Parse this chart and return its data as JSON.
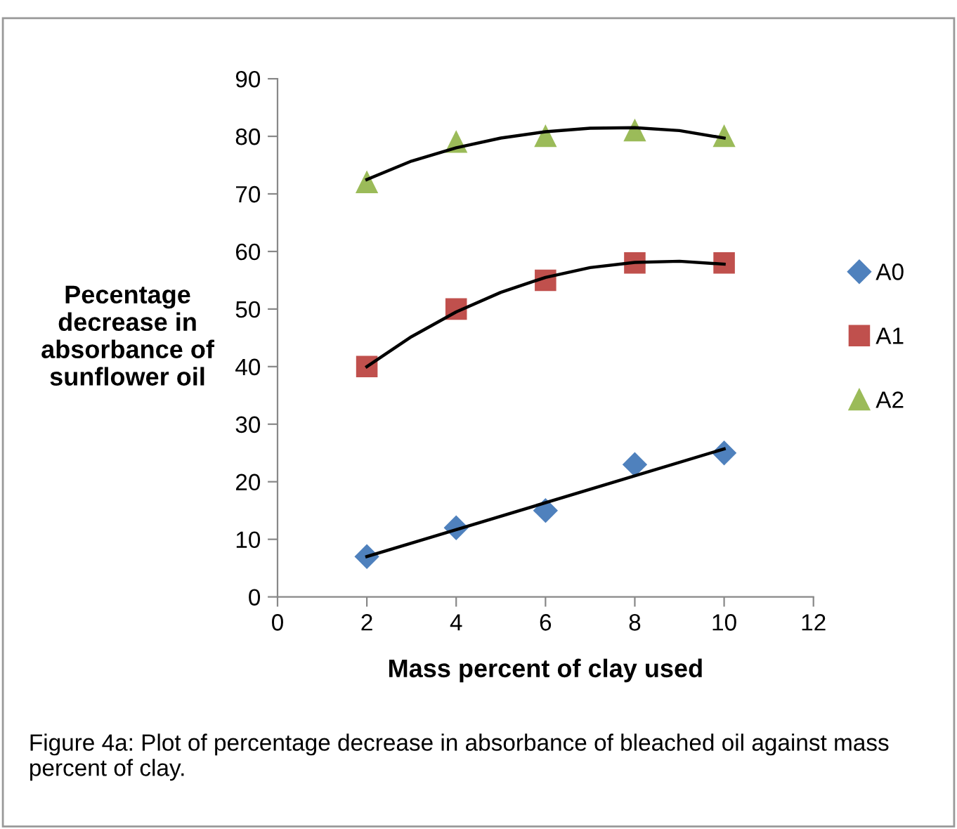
{
  "chart_data": {
    "type": "scatter",
    "xlabel": "Mass percent of clay used",
    "ylabel": "Pecentage\ndecrease in\nabsorbance of\nsunflower oil",
    "x": [
      2,
      4,
      6,
      8,
      10
    ],
    "series": [
      {
        "name": "A0",
        "color": "#4f81bd",
        "marker": "diamond",
        "values": [
          7,
          12,
          15,
          23,
          25
        ]
      },
      {
        "name": "A1",
        "color": "#c0504d",
        "marker": "square",
        "values": [
          40,
          50,
          55,
          58,
          58
        ]
      },
      {
        "name": "A2",
        "color": "#9bbb59",
        "marker": "triangle",
        "values": [
          72,
          79,
          80,
          81,
          80
        ]
      },
      {
        "type": "line",
        "color": "#000000",
        "marker": "none",
        "x": [
          2,
          10
        ],
        "values": [
          7,
          25.7
        ]
      },
      {
        "type": "line",
        "color": "#000000",
        "marker": "none",
        "x": [
          2,
          3,
          4,
          5,
          6,
          7,
          8,
          9,
          10
        ],
        "values": [
          40,
          45.2,
          49.5,
          52.9,
          55.5,
          57.2,
          58.1,
          58.3,
          57.8
        ]
      },
      {
        "type": "line",
        "color": "#000000",
        "marker": "none",
        "x": [
          2,
          3,
          4,
          5,
          6,
          7,
          8,
          9,
          10
        ],
        "values": [
          72.5,
          75.7,
          78,
          79.7,
          80.8,
          81.4,
          81.5,
          81,
          79.7
        ]
      }
    ],
    "xlim": [
      0,
      12
    ],
    "xticks": [
      0,
      2,
      4,
      6,
      8,
      10,
      12
    ],
    "ylim": [
      0,
      90
    ],
    "yticks": [
      0,
      10,
      20,
      30,
      40,
      50,
      60,
      70,
      80,
      90
    ],
    "grid": false,
    "legend": "right",
    "annotations": [
      "Figure 4a: Plot of percentage decrease in absorbance of bleached oil against mass percent of clay."
    ]
  }
}
